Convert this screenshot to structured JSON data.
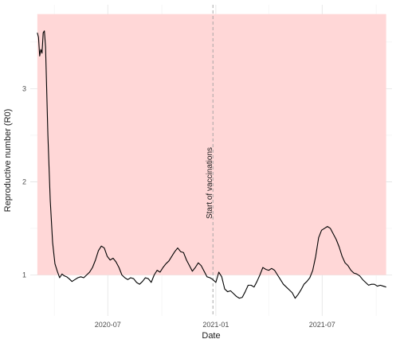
{
  "chart_data": {
    "type": "line",
    "title": "",
    "xlabel": "Date",
    "ylabel": "Reproductive number (R0)",
    "xlim": [
      "2020-02-20",
      "2021-10-28"
    ],
    "ylim": [
      0.56,
      3.9
    ],
    "grid": true,
    "x_ticks": [
      {
        "date": "2020-07-01",
        "label": "2020-07"
      },
      {
        "date": "2021-01-01",
        "label": "2021-01"
      },
      {
        "date": "2021-07-01",
        "label": "2021-07"
      }
    ],
    "x_minor_ticks": [
      "2020-04-01",
      "2020-10-01",
      "2021-04-01",
      "2021-10-01"
    ],
    "y_ticks": [
      1,
      2,
      3
    ],
    "y_minor_ticks": [
      1.5,
      2.5,
      3.5
    ],
    "shaded_region": {
      "x_start": "2020-03-03",
      "x_end": "2021-10-18",
      "y_start": 1,
      "y_end": 3.8,
      "color": "#ffd7d7"
    },
    "vline": {
      "x": "2020-12-27",
      "label": "Start of vaccinations",
      "color": "#a0a0a0"
    },
    "line_color": "#000000",
    "series": [
      {
        "points": [
          [
            "2020-03-03",
            3.6
          ],
          [
            "2020-03-05",
            3.55
          ],
          [
            "2020-03-07",
            3.35
          ],
          [
            "2020-03-09",
            3.42
          ],
          [
            "2020-03-11",
            3.38
          ],
          [
            "2020-03-13",
            3.6
          ],
          [
            "2020-03-15",
            3.62
          ],
          [
            "2020-03-17",
            3.45
          ],
          [
            "2020-03-21",
            2.5
          ],
          [
            "2020-03-25",
            1.8
          ],
          [
            "2020-03-29",
            1.35
          ],
          [
            "2020-04-02",
            1.12
          ],
          [
            "2020-04-06",
            1.04
          ],
          [
            "2020-04-10",
            0.97
          ],
          [
            "2020-04-14",
            1.01
          ],
          [
            "2020-04-18",
            0.99
          ],
          [
            "2020-04-22",
            0.98
          ],
          [
            "2020-04-26",
            0.96
          ],
          [
            "2020-05-01",
            0.93
          ],
          [
            "2020-05-06",
            0.95
          ],
          [
            "2020-05-11",
            0.97
          ],
          [
            "2020-05-16",
            0.98
          ],
          [
            "2020-05-21",
            0.97
          ],
          [
            "2020-05-26",
            1.0
          ],
          [
            "2020-05-31",
            1.03
          ],
          [
            "2020-06-05",
            1.08
          ],
          [
            "2020-06-10",
            1.16
          ],
          [
            "2020-06-15",
            1.26
          ],
          [
            "2020-06-20",
            1.31
          ],
          [
            "2020-06-25",
            1.29
          ],
          [
            "2020-06-30",
            1.2
          ],
          [
            "2020-07-05",
            1.16
          ],
          [
            "2020-07-10",
            1.18
          ],
          [
            "2020-07-15",
            1.14
          ],
          [
            "2020-07-20",
            1.08
          ],
          [
            "2020-07-25",
            1.0
          ],
          [
            "2020-07-30",
            0.97
          ],
          [
            "2020-08-04",
            0.95
          ],
          [
            "2020-08-09",
            0.97
          ],
          [
            "2020-08-14",
            0.96
          ],
          [
            "2020-08-19",
            0.92
          ],
          [
            "2020-08-24",
            0.9
          ],
          [
            "2020-08-29",
            0.93
          ],
          [
            "2020-09-03",
            0.97
          ],
          [
            "2020-09-08",
            0.96
          ],
          [
            "2020-09-13",
            0.92
          ],
          [
            "2020-09-18",
            1.0
          ],
          [
            "2020-09-23",
            1.05
          ],
          [
            "2020-09-28",
            1.03
          ],
          [
            "2020-10-03",
            1.08
          ],
          [
            "2020-10-08",
            1.12
          ],
          [
            "2020-10-13",
            1.15
          ],
          [
            "2020-10-18",
            1.2
          ],
          [
            "2020-10-23",
            1.25
          ],
          [
            "2020-10-28",
            1.29
          ],
          [
            "2020-11-02",
            1.25
          ],
          [
            "2020-11-07",
            1.24
          ],
          [
            "2020-11-12",
            1.16
          ],
          [
            "2020-11-17",
            1.1
          ],
          [
            "2020-11-22",
            1.04
          ],
          [
            "2020-11-27",
            1.08
          ],
          [
            "2020-12-02",
            1.13
          ],
          [
            "2020-12-07",
            1.1
          ],
          [
            "2020-12-12",
            1.04
          ],
          [
            "2020-12-17",
            0.98
          ],
          [
            "2020-12-22",
            0.97
          ],
          [
            "2020-12-27",
            0.95
          ],
          [
            "2021-01-01",
            0.92
          ],
          [
            "2021-01-06",
            1.03
          ],
          [
            "2021-01-11",
            0.98
          ],
          [
            "2021-01-16",
            0.85
          ],
          [
            "2021-01-21",
            0.82
          ],
          [
            "2021-01-26",
            0.83
          ],
          [
            "2021-01-31",
            0.8
          ],
          [
            "2021-02-05",
            0.77
          ],
          [
            "2021-02-10",
            0.75
          ],
          [
            "2021-02-15",
            0.76
          ],
          [
            "2021-02-20",
            0.82
          ],
          [
            "2021-02-25",
            0.89
          ],
          [
            "2021-03-02",
            0.89
          ],
          [
            "2021-03-07",
            0.87
          ],
          [
            "2021-03-12",
            0.93
          ],
          [
            "2021-03-17",
            1.0
          ],
          [
            "2021-03-22",
            1.08
          ],
          [
            "2021-03-27",
            1.06
          ],
          [
            "2021-04-01",
            1.05
          ],
          [
            "2021-04-06",
            1.07
          ],
          [
            "2021-04-11",
            1.05
          ],
          [
            "2021-04-16",
            1.0
          ],
          [
            "2021-04-21",
            0.95
          ],
          [
            "2021-04-26",
            0.9
          ],
          [
            "2021-05-01",
            0.87
          ],
          [
            "2021-05-06",
            0.84
          ],
          [
            "2021-05-11",
            0.81
          ],
          [
            "2021-05-16",
            0.75
          ],
          [
            "2021-05-21",
            0.79
          ],
          [
            "2021-05-26",
            0.84
          ],
          [
            "2021-05-31",
            0.9
          ],
          [
            "2021-06-05",
            0.93
          ],
          [
            "2021-06-10",
            0.97
          ],
          [
            "2021-06-15",
            1.05
          ],
          [
            "2021-06-20",
            1.2
          ],
          [
            "2021-06-25",
            1.4
          ],
          [
            "2021-06-30",
            1.48
          ],
          [
            "2021-07-05",
            1.5
          ],
          [
            "2021-07-10",
            1.52
          ],
          [
            "2021-07-15",
            1.5
          ],
          [
            "2021-07-20",
            1.44
          ],
          [
            "2021-07-25",
            1.38
          ],
          [
            "2021-07-30",
            1.3
          ],
          [
            "2021-08-04",
            1.2
          ],
          [
            "2021-08-09",
            1.13
          ],
          [
            "2021-08-14",
            1.1
          ],
          [
            "2021-08-19",
            1.05
          ],
          [
            "2021-08-24",
            1.02
          ],
          [
            "2021-08-29",
            1.01
          ],
          [
            "2021-09-03",
            0.99
          ],
          [
            "2021-09-08",
            0.95
          ],
          [
            "2021-09-13",
            0.92
          ],
          [
            "2021-09-18",
            0.89
          ],
          [
            "2021-09-23",
            0.9
          ],
          [
            "2021-09-28",
            0.9
          ],
          [
            "2021-10-03",
            0.88
          ],
          [
            "2021-10-08",
            0.89
          ],
          [
            "2021-10-13",
            0.88
          ],
          [
            "2021-10-18",
            0.87
          ]
        ]
      }
    ]
  }
}
